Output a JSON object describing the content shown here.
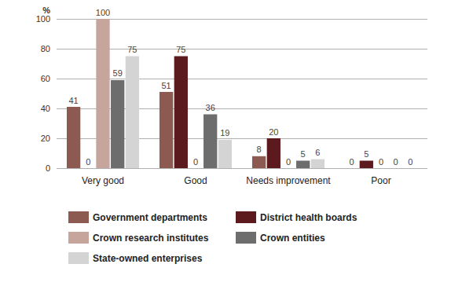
{
  "chart_data": {
    "type": "bar",
    "ylabel": "%",
    "categories": [
      "Very good",
      "Good",
      "Needs improvement",
      "Poor"
    ],
    "series": [
      {
        "name": "Government departments",
        "color": "#8c5a50",
        "values": [
          41,
          51,
          8,
          0
        ]
      },
      {
        "name": "District health boards",
        "color": "#5c1a1e",
        "values": [
          0,
          75,
          20,
          5
        ]
      },
      {
        "name": "Crown research institutes",
        "color": "#c6a69c",
        "values": [
          100,
          0,
          0,
          0
        ]
      },
      {
        "name": "Crown entities",
        "color": "#6d6d6d",
        "values": [
          59,
          36,
          5,
          0
        ]
      },
      {
        "name": "State-owned enterprises",
        "color": "#d4d4d4",
        "values": [
          75,
          19,
          6,
          0
        ]
      }
    ],
    "ylim": [
      0,
      100
    ],
    "yticks": [
      0,
      20,
      40,
      60,
      80,
      100
    ],
    "grid": true,
    "data_labels": true,
    "legend": "bottom"
  }
}
